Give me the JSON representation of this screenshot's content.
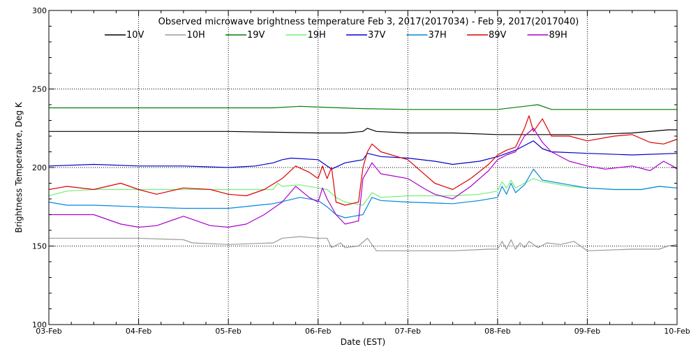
{
  "chart_data": {
    "type": "line",
    "title": "Observed microwave brightness temperature Feb  3, 2017(2017034) - Feb  9, 2017(2017040)",
    "xlabel": "Date (EST)",
    "ylabel": "Brightness Temperature, Deg K",
    "ylim": [
      100,
      300
    ],
    "xlim": [
      0,
      7
    ],
    "y_ticks": [
      100,
      150,
      200,
      250,
      300
    ],
    "y_gridlines": [
      150,
      200,
      250
    ],
    "x_ticks": [
      {
        "x": 0,
        "label": "03-Feb"
      },
      {
        "x": 1,
        "label": "04-Feb"
      },
      {
        "x": 2,
        "label": "05-Feb"
      },
      {
        "x": 3,
        "label": "06-Feb"
      },
      {
        "x": 4,
        "label": "07-Feb"
      },
      {
        "x": 5,
        "label": "08-Feb"
      },
      {
        "x": 6,
        "label": "09-Feb"
      },
      {
        "x": 7,
        "label": "10-Feb"
      }
    ],
    "grid": "dotted",
    "legend_position": "top",
    "series": [
      {
        "name": "10V",
        "color": "#000000",
        "points": [
          [
            0,
            223
          ],
          [
            0.5,
            223
          ],
          [
            1,
            223
          ],
          [
            1.5,
            223
          ],
          [
            2,
            223
          ],
          [
            2.5,
            222.5
          ],
          [
            3,
            222
          ],
          [
            3.3,
            222
          ],
          [
            3.5,
            223
          ],
          [
            3.55,
            225
          ],
          [
            3.65,
            223
          ],
          [
            4,
            222
          ],
          [
            4.5,
            222
          ],
          [
            5,
            221
          ],
          [
            5.3,
            221
          ],
          [
            5.5,
            221
          ],
          [
            6,
            221
          ],
          [
            6.5,
            222
          ],
          [
            6.9,
            224
          ],
          [
            7,
            224
          ]
        ]
      },
      {
        "name": "10H",
        "color": "#999999",
        "points": [
          [
            0,
            155
          ],
          [
            0.5,
            155
          ],
          [
            1,
            155
          ],
          [
            1.5,
            154
          ],
          [
            1.6,
            152
          ],
          [
            2,
            151
          ],
          [
            2.5,
            152
          ],
          [
            2.6,
            155
          ],
          [
            2.8,
            156
          ],
          [
            3,
            155
          ],
          [
            3.1,
            155
          ],
          [
            3.15,
            149
          ],
          [
            3.25,
            152
          ],
          [
            3.3,
            149
          ],
          [
            3.45,
            150
          ],
          [
            3.55,
            155
          ],
          [
            3.65,
            147
          ],
          [
            4,
            147
          ],
          [
            4.5,
            147
          ],
          [
            4.9,
            148
          ],
          [
            5,
            148
          ],
          [
            5.05,
            153
          ],
          [
            5.1,
            148
          ],
          [
            5.15,
            154
          ],
          [
            5.2,
            148
          ],
          [
            5.25,
            152
          ],
          [
            5.3,
            149
          ],
          [
            5.35,
            153
          ],
          [
            5.45,
            149
          ],
          [
            5.55,
            152
          ],
          [
            5.7,
            151
          ],
          [
            5.85,
            153
          ],
          [
            6,
            147
          ],
          [
            6.5,
            148
          ],
          [
            6.8,
            148
          ],
          [
            6.9,
            150
          ],
          [
            7,
            151
          ]
        ]
      },
      {
        "name": "19V",
        "color": "#008000",
        "points": [
          [
            0,
            238
          ],
          [
            0.5,
            238
          ],
          [
            1,
            238
          ],
          [
            1.5,
            238
          ],
          [
            2,
            238
          ],
          [
            2.5,
            238
          ],
          [
            2.8,
            239
          ],
          [
            3,
            238.5
          ],
          [
            3.5,
            237.5
          ],
          [
            4,
            237
          ],
          [
            4.5,
            237
          ],
          [
            5,
            237
          ],
          [
            5.3,
            239
          ],
          [
            5.45,
            240
          ],
          [
            5.6,
            237
          ],
          [
            6,
            237
          ],
          [
            6.5,
            237
          ],
          [
            7,
            237
          ]
        ]
      },
      {
        "name": "19H",
        "color": "#77ee77",
        "points": [
          [
            0,
            182
          ],
          [
            0.2,
            185
          ],
          [
            0.5,
            186
          ],
          [
            1,
            186
          ],
          [
            1.5,
            186
          ],
          [
            2,
            186
          ],
          [
            2.5,
            186
          ],
          [
            2.55,
            190
          ],
          [
            2.6,
            188
          ],
          [
            2.8,
            189
          ],
          [
            3,
            187
          ],
          [
            3.1,
            186
          ],
          [
            3.2,
            181
          ],
          [
            3.3,
            178
          ],
          [
            3.5,
            176
          ],
          [
            3.6,
            184
          ],
          [
            3.7,
            181
          ],
          [
            4,
            182
          ],
          [
            4.5,
            182
          ],
          [
            4.8,
            183
          ],
          [
            5,
            185
          ],
          [
            5.05,
            191
          ],
          [
            5.1,
            187
          ],
          [
            5.15,
            192
          ],
          [
            5.2,
            187
          ],
          [
            5.3,
            190
          ],
          [
            5.4,
            193
          ],
          [
            5.5,
            191
          ],
          [
            5.6,
            190
          ],
          [
            5.8,
            188
          ],
          [
            6,
            187
          ],
          [
            6.3,
            186
          ],
          [
            6.6,
            186
          ],
          [
            6.8,
            188
          ],
          [
            7,
            187
          ]
        ]
      },
      {
        "name": "37V",
        "color": "#0000cc",
        "points": [
          [
            0,
            201
          ],
          [
            0.5,
            202
          ],
          [
            1,
            201
          ],
          [
            1.5,
            201
          ],
          [
            2,
            200
          ],
          [
            2.3,
            201
          ],
          [
            2.5,
            203
          ],
          [
            2.6,
            205
          ],
          [
            2.7,
            206
          ],
          [
            3,
            205
          ],
          [
            3.15,
            199
          ],
          [
            3.3,
            203
          ],
          [
            3.5,
            205
          ],
          [
            3.55,
            209
          ],
          [
            3.7,
            207
          ],
          [
            4,
            206
          ],
          [
            4.3,
            204
          ],
          [
            4.5,
            202
          ],
          [
            4.8,
            204
          ],
          [
            5,
            207
          ],
          [
            5.2,
            211
          ],
          [
            5.3,
            214
          ],
          [
            5.4,
            217
          ],
          [
            5.5,
            212
          ],
          [
            5.6,
            210
          ],
          [
            6,
            209
          ],
          [
            6.5,
            208
          ],
          [
            7,
            209
          ]
        ]
      },
      {
        "name": "37H",
        "color": "#0088dd",
        "points": [
          [
            0,
            178
          ],
          [
            0.2,
            176
          ],
          [
            0.5,
            176
          ],
          [
            1,
            175
          ],
          [
            1.5,
            174
          ],
          [
            2,
            174
          ],
          [
            2.5,
            177
          ],
          [
            2.8,
            181
          ],
          [
            3,
            179
          ],
          [
            3.1,
            175
          ],
          [
            3.2,
            170
          ],
          [
            3.3,
            168
          ],
          [
            3.5,
            170
          ],
          [
            3.6,
            181
          ],
          [
            3.7,
            179
          ],
          [
            4,
            178
          ],
          [
            4.5,
            177
          ],
          [
            4.8,
            179
          ],
          [
            5,
            181
          ],
          [
            5.05,
            188
          ],
          [
            5.1,
            183
          ],
          [
            5.15,
            190
          ],
          [
            5.2,
            184
          ],
          [
            5.3,
            189
          ],
          [
            5.4,
            199
          ],
          [
            5.5,
            192
          ],
          [
            5.6,
            191
          ],
          [
            5.8,
            189
          ],
          [
            6,
            187
          ],
          [
            6.3,
            186
          ],
          [
            6.6,
            186
          ],
          [
            6.8,
            188
          ],
          [
            7,
            187
          ]
        ]
      },
      {
        "name": "89V",
        "color": "#dd0000",
        "points": [
          [
            0,
            186
          ],
          [
            0.1,
            187
          ],
          [
            0.2,
            188
          ],
          [
            0.5,
            186
          ],
          [
            0.8,
            190
          ],
          [
            1,
            186
          ],
          [
            1.2,
            183
          ],
          [
            1.5,
            187
          ],
          [
            1.8,
            186
          ],
          [
            2,
            183
          ],
          [
            2.2,
            182
          ],
          [
            2.4,
            186
          ],
          [
            2.6,
            193
          ],
          [
            2.75,
            201
          ],
          [
            2.9,
            197
          ],
          [
            3,
            193
          ],
          [
            3.05,
            201
          ],
          [
            3.1,
            193
          ],
          [
            3.15,
            200
          ],
          [
            3.2,
            178
          ],
          [
            3.3,
            176
          ],
          [
            3.45,
            178
          ],
          [
            3.5,
            200
          ],
          [
            3.55,
            210
          ],
          [
            3.6,
            215
          ],
          [
            3.7,
            210
          ],
          [
            4,
            205
          ],
          [
            4.2,
            195
          ],
          [
            4.3,
            190
          ],
          [
            4.5,
            186
          ],
          [
            4.7,
            193
          ],
          [
            4.9,
            202
          ],
          [
            5,
            208
          ],
          [
            5.1,
            211
          ],
          [
            5.2,
            213
          ],
          [
            5.3,
            225
          ],
          [
            5.35,
            233
          ],
          [
            5.4,
            223
          ],
          [
            5.5,
            231
          ],
          [
            5.6,
            220
          ],
          [
            5.8,
            220
          ],
          [
            6,
            217
          ],
          [
            6.3,
            220
          ],
          [
            6.5,
            221
          ],
          [
            6.7,
            216
          ],
          [
            6.85,
            215
          ],
          [
            7,
            218
          ]
        ]
      },
      {
        "name": "89H",
        "color": "#aa00cc",
        "points": [
          [
            0,
            170
          ],
          [
            0.5,
            170
          ],
          [
            0.8,
            164
          ],
          [
            1,
            162
          ],
          [
            1.2,
            163
          ],
          [
            1.5,
            169
          ],
          [
            1.8,
            163
          ],
          [
            2,
            162
          ],
          [
            2.2,
            164
          ],
          [
            2.4,
            170
          ],
          [
            2.6,
            178
          ],
          [
            2.75,
            188
          ],
          [
            2.9,
            181
          ],
          [
            3,
            178
          ],
          [
            3.05,
            187
          ],
          [
            3.1,
            180
          ],
          [
            3.2,
            170
          ],
          [
            3.3,
            164
          ],
          [
            3.45,
            166
          ],
          [
            3.5,
            193
          ],
          [
            3.6,
            203
          ],
          [
            3.7,
            196
          ],
          [
            4,
            193
          ],
          [
            4.2,
            186
          ],
          [
            4.3,
            183
          ],
          [
            4.5,
            180
          ],
          [
            4.7,
            188
          ],
          [
            4.9,
            198
          ],
          [
            5,
            205
          ],
          [
            5.1,
            208
          ],
          [
            5.2,
            210
          ],
          [
            5.3,
            220
          ],
          [
            5.4,
            225
          ],
          [
            5.5,
            216
          ],
          [
            5.6,
            210
          ],
          [
            5.8,
            204
          ],
          [
            6,
            201
          ],
          [
            6.2,
            199
          ],
          [
            6.5,
            201
          ],
          [
            6.7,
            198
          ],
          [
            6.85,
            204
          ],
          [
            6.95,
            201
          ],
          [
            7,
            199
          ]
        ]
      }
    ]
  }
}
